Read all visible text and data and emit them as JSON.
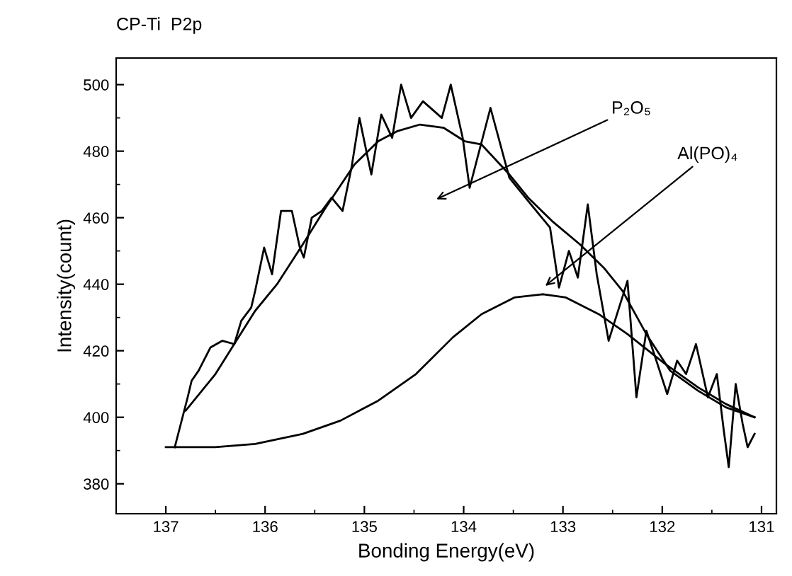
{
  "chart_data": {
    "type": "line",
    "title": "CP-Ti  P2p",
    "xlabel": "Bonding Energy(eV)",
    "ylabel": "Intensity(count)",
    "xlim": [
      137.5,
      130.85
    ],
    "ylim": [
      371,
      508
    ],
    "xticks": [
      137,
      136,
      135,
      134,
      133,
      132,
      131
    ],
    "yticks": [
      380,
      400,
      420,
      440,
      460,
      480,
      500
    ],
    "marker": "none",
    "line_style": "solid",
    "series": [
      {
        "color": "#000000",
        "x": [
          136.91,
          136.78,
          136.74,
          136.67,
          136.55,
          136.43,
          136.31,
          136.24,
          136.14,
          136.1,
          136.01,
          135.93,
          135.84,
          135.73,
          135.65,
          135.61,
          135.53,
          135.43,
          135.33,
          135.22,
          135.13,
          135.05,
          134.98,
          134.93,
          134.83,
          134.72,
          134.63,
          134.53,
          134.41,
          134.22,
          134.13,
          134.01,
          133.94,
          133.73,
          133.54,
          133.35,
          133.13,
          133.04,
          132.94,
          132.85,
          132.75,
          132.66,
          132.54,
          132.35,
          132.26,
          132.16,
          132.07,
          131.95,
          131.85,
          131.76,
          131.66,
          131.54,
          131.45,
          131.38,
          131.33,
          131.26,
          131.19,
          131.14,
          131.07
        ],
        "values": [
          391,
          406,
          411,
          414,
          421,
          423,
          422,
          429,
          433,
          438,
          451,
          443,
          462,
          462,
          451,
          448,
          460,
          462,
          466,
          462,
          475,
          490,
          480,
          473,
          491,
          484,
          500,
          490,
          495,
          490,
          500,
          484,
          469,
          493,
          472,
          465,
          457,
          439,
          450,
          442,
          464,
          443,
          423,
          441,
          406,
          426,
          418,
          407,
          417,
          413,
          422,
          406,
          413,
          396,
          385,
          410,
          398,
          391,
          395
        ]
      },
      {
        "color": "#000000",
        "x": [
          136.8,
          136.5,
          136.29,
          136.1,
          135.88,
          135.62,
          135.39,
          135.1,
          134.86,
          134.67,
          134.44,
          134.2,
          133.99,
          133.82,
          133.54,
          133.35,
          133.11,
          132.83,
          132.59,
          132.4,
          132.16,
          131.92,
          131.64,
          131.36,
          131.07
        ],
        "values": [
          402,
          413,
          423,
          432,
          440,
          452,
          463,
          476,
          483,
          486,
          488,
          487,
          483,
          482,
          473,
          466,
          459,
          452,
          445,
          438,
          425,
          414,
          408,
          403,
          400
        ]
      },
      {
        "color": "#000000",
        "x": [
          137.0,
          136.5,
          136.1,
          135.62,
          135.24,
          134.86,
          134.48,
          134.11,
          133.82,
          133.49,
          133.2,
          132.97,
          132.64,
          132.35,
          131.97,
          131.64,
          131.36,
          131.07
        ],
        "values": [
          391,
          391,
          392,
          395,
          399,
          405,
          413,
          424,
          431,
          436,
          437,
          436,
          431,
          425,
          416,
          409,
          404,
          400
        ]
      }
    ],
    "annotations": [
      "P₂O₅",
      "Al(PO)₄"
    ]
  }
}
